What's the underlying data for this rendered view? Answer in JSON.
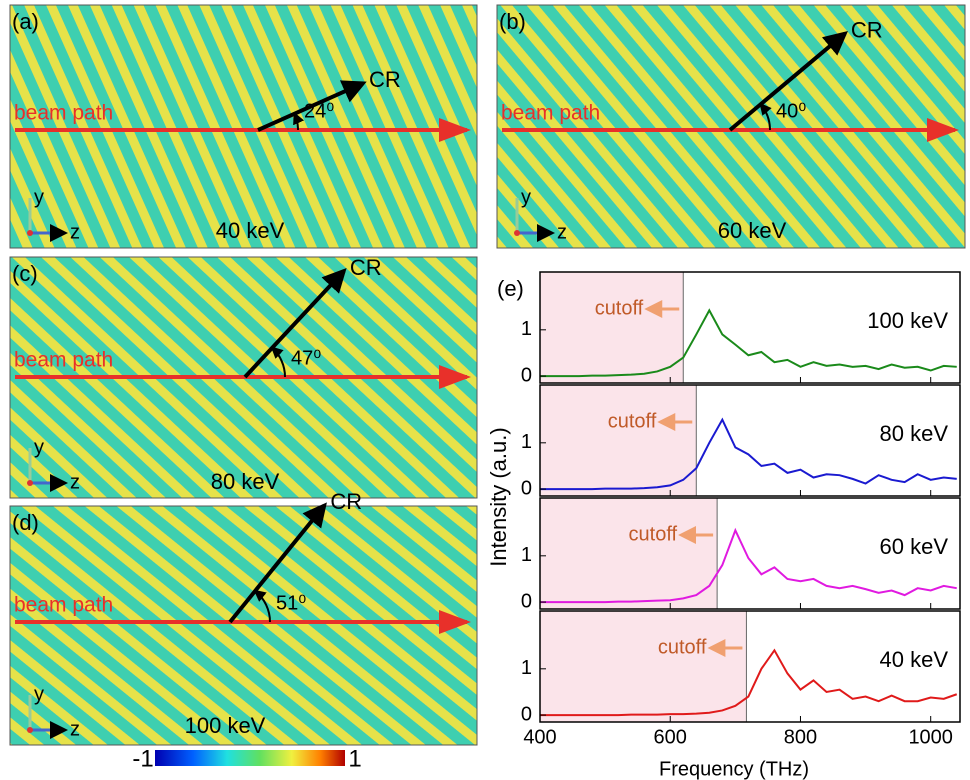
{
  "panels": [
    {
      "label": "(a)",
      "energy": "40 keV",
      "angle": {
        "value": 24,
        "label": "24⁰"
      }
    },
    {
      "label": "(b)",
      "energy": "60 keV",
      "angle": {
        "value": 40,
        "label": "40⁰"
      }
    },
    {
      "label": "(c)",
      "energy": "80 keV",
      "angle": {
        "value": 47,
        "label": "47⁰"
      }
    },
    {
      "label": "(d)",
      "energy": "100 keV",
      "angle": {
        "value": 51,
        "label": "51⁰"
      }
    }
  ],
  "beam_label": "beam path",
  "cr_label": "CR",
  "axis_y": "y",
  "axis_z": "z",
  "colorbar": {
    "min": -1,
    "max": 1
  },
  "chart_data": {
    "type": "line",
    "label": "(e)",
    "x_label": "Frequency (THz)",
    "y_label": "Intensity (a.u.)",
    "cutoff_label": "cutoff",
    "xlim": [
      400,
      1045
    ],
    "xticks": [
      400,
      600,
      800,
      1000
    ],
    "ylim": [
      -0.15,
      2.25
    ],
    "yticks": [
      0,
      1
    ],
    "x": [
      400,
      420,
      440,
      460,
      480,
      500,
      520,
      540,
      560,
      580,
      600,
      620,
      640,
      660,
      680,
      700,
      720,
      740,
      760,
      780,
      800,
      820,
      840,
      860,
      880,
      900,
      920,
      940,
      960,
      980,
      1000,
      1020,
      1040
    ],
    "series": [
      {
        "name": "100 keV",
        "color": "#1a8a1a",
        "cutoff": 620,
        "values": [
          0,
          0,
          0,
          0,
          0.01,
          0.01,
          0.02,
          0.03,
          0.05,
          0.1,
          0.2,
          0.4,
          0.9,
          1.42,
          0.9,
          0.68,
          0.45,
          0.52,
          0.3,
          0.35,
          0.2,
          0.3,
          0.22,
          0.25,
          0.2,
          0.22,
          0.15,
          0.25,
          0.18,
          0.2,
          0.12,
          0.22,
          0.2
        ]
      },
      {
        "name": "80 keV",
        "color": "#1a1ad0",
        "cutoff": 640,
        "values": [
          0,
          0,
          0,
          0,
          0,
          0.01,
          0.01,
          0.01,
          0.02,
          0.04,
          0.08,
          0.2,
          0.45,
          1.0,
          1.5,
          0.9,
          0.75,
          0.5,
          0.55,
          0.35,
          0.42,
          0.25,
          0.32,
          0.3,
          0.22,
          0.12,
          0.3,
          0.2,
          0.15,
          0.32,
          0.2,
          0.25,
          0.22
        ]
      },
      {
        "name": "60 keV",
        "color": "#e01ae0",
        "cutoff": 672,
        "values": [
          0,
          0,
          0,
          0,
          0,
          0,
          0.01,
          0.01,
          0.02,
          0.03,
          0.04,
          0.08,
          0.15,
          0.35,
          0.8,
          1.55,
          0.95,
          0.6,
          0.75,
          0.5,
          0.45,
          0.5,
          0.35,
          0.3,
          0.35,
          0.28,
          0.2,
          0.25,
          0.15,
          0.3,
          0.25,
          0.35,
          0.3
        ]
      },
      {
        "name": "40 keV",
        "color": "#e01a1a",
        "cutoff": 717,
        "values": [
          0,
          0,
          0,
          0,
          0,
          0,
          0,
          0.01,
          0.01,
          0.01,
          0.02,
          0.02,
          0.03,
          0.05,
          0.1,
          0.2,
          0.4,
          1.0,
          1.4,
          0.9,
          0.55,
          0.75,
          0.5,
          0.55,
          0.35,
          0.4,
          0.3,
          0.42,
          0.3,
          0.3,
          0.38,
          0.35,
          0.45
        ]
      }
    ]
  }
}
